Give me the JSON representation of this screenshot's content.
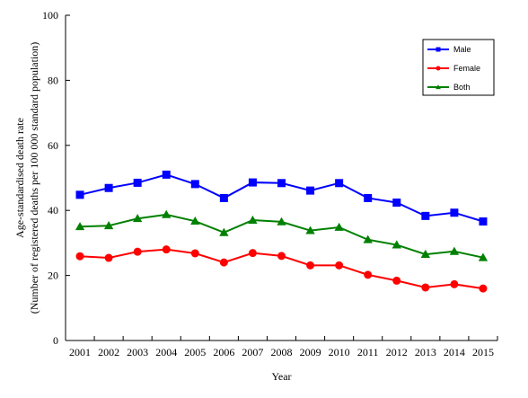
{
  "chart_data": {
    "type": "line",
    "title": "",
    "xlabel": "Year",
    "ylabel": "Age-standardised death rate",
    "ylabel2": "(Number of registered deaths per 100 000 standard population)",
    "ylim": [
      0,
      100
    ],
    "yticks": [
      0,
      20,
      40,
      60,
      80,
      100
    ],
    "grid": false,
    "legend_position": "top-right",
    "categories": [
      "2001",
      "2002",
      "2003",
      "2004",
      "2005",
      "2006",
      "2007",
      "2008",
      "2009",
      "2010",
      "2011",
      "2012",
      "2013",
      "2014",
      "2015"
    ],
    "series": [
      {
        "name": "Male",
        "color": "#0000ff",
        "marker": "square",
        "values": [
          44.8,
          46.9,
          48.5,
          51.0,
          48.1,
          43.8,
          48.6,
          48.4,
          46.1,
          48.4,
          43.8,
          42.4,
          38.3,
          39.3,
          36.6
        ]
      },
      {
        "name": "Female",
        "color": "#ff0000",
        "marker": "circle",
        "values": [
          25.9,
          25.4,
          27.3,
          28.0,
          26.8,
          24.0,
          26.9,
          26.0,
          23.1,
          23.1,
          20.2,
          18.4,
          16.3,
          17.3,
          16.0
        ]
      },
      {
        "name": "Both",
        "color": "#008000",
        "marker": "triangle",
        "values": [
          35.0,
          35.3,
          37.5,
          38.7,
          36.7,
          33.2,
          37.0,
          36.5,
          33.8,
          34.8,
          31.0,
          29.4,
          26.5,
          27.4,
          25.5
        ]
      }
    ]
  }
}
